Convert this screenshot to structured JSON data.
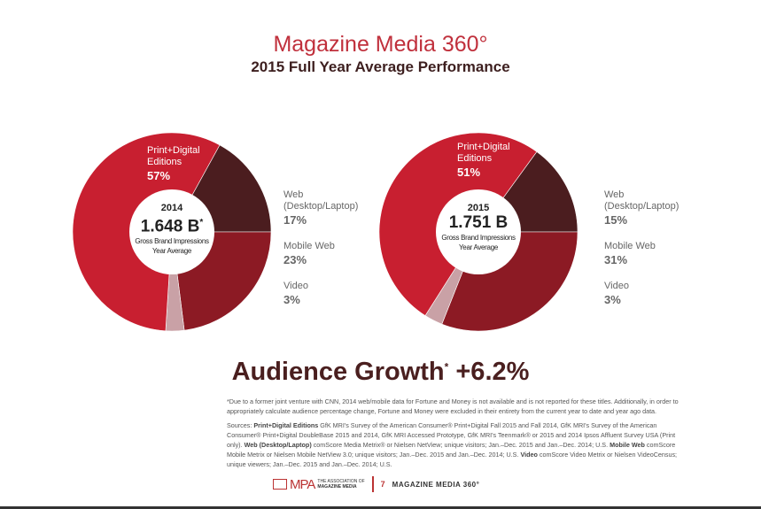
{
  "header": {
    "title": "Magazine Media 360°",
    "subtitle": "2015 Full Year Average Performance"
  },
  "chart_data": [
    {
      "type": "pie",
      "year": "2014",
      "center_value": "1.648 B",
      "center_mark": "*",
      "center_label": "Gross Brand Impressions Year Average",
      "slices": [
        {
          "name": "Web (Desktop/Laptop)",
          "value": 17,
          "label": "17%",
          "color": "#4b1d1f"
        },
        {
          "name": "Mobile Web",
          "value": 23,
          "label": "23%",
          "color": "#8c1a24"
        },
        {
          "name": "Video",
          "value": 3,
          "label": "3%",
          "color": "#c9a1a6"
        },
        {
          "name": "Print+Digital Editions",
          "value": 57,
          "label": "57%",
          "color": "#c81f30"
        }
      ]
    },
    {
      "type": "pie",
      "year": "2015",
      "center_value": "1.751 B",
      "center_mark": "",
      "center_label": "Gross Brand Impressions Year Average",
      "slices": [
        {
          "name": "Web (Desktop/Laptop)",
          "value": 15,
          "label": "15%",
          "color": "#4b1d1f"
        },
        {
          "name": "Mobile Web",
          "value": 31,
          "label": "31%",
          "color": "#8c1a24"
        },
        {
          "name": "Video",
          "value": 3,
          "label": "3%",
          "color": "#c9a1a6"
        },
        {
          "name": "Print+Digital Editions",
          "value": 51,
          "label": "51%",
          "color": "#c81f30"
        }
      ]
    }
  ],
  "labels": {
    "print": "Print+Digital Editions",
    "web_line1": "Web",
    "web_line2": "(Desktop/Laptop)",
    "mobile": "Mobile Web",
    "video": "Video"
  },
  "growth": {
    "text": "Audience Growth",
    "mark": "*",
    "value": "+6.2%"
  },
  "footnote": "*Due to a former joint venture with CNN, 2014 web/mobile data for Fortune and Money is not available and is not reported for these titles. Additionally, in order to appropriately calculate audience percentage change, Fortune and Money were excluded in their entirety from the current year to date and year ago data.",
  "sources": {
    "prefix": "Sources: ",
    "p1_bold": "Print+Digital Editions",
    "p1": " GfK MRI's Survey of the American Consumer® Print+Digital Fall 2015 and Fall 2014, GfK MRI's Survey of the American Consumer® Print+Digital DoubleBase 2015 and 2014, GfK MRI Accessed Prototype, GfK MRI's Teenmark® or 2015 and 2014 Ipsos Affluent Survey USA (Print only). ",
    "p2_bold": "Web (Desktop/Laptop)",
    "p2": " comScore Media Metrix® or Nielsen NetView; unique visitors; Jan.–Dec. 2015 and Jan.–Dec. 2014; U.S. ",
    "p3_bold": "Mobile Web",
    "p3": " comScore Mobile Metrix or Nielsen Mobile NetView 3.0; unique visitors; Jan.–Dec. 2015 and Jan.–Dec. 2014; U.S. ",
    "p4_bold": "Video",
    "p4": " comScore Video Metrix or Nielsen VideoCensus; unique viewers; Jan.–Dec. 2015 and Jan.–Dec. 2014; U.S."
  },
  "footer": {
    "logo": "MPA",
    "logo_sub1": "THE ASSOCIATION OF",
    "logo_sub2": "MAGAZINE MEDIA",
    "page": "7",
    "title": "MAGAZINE MEDIA 360°"
  }
}
